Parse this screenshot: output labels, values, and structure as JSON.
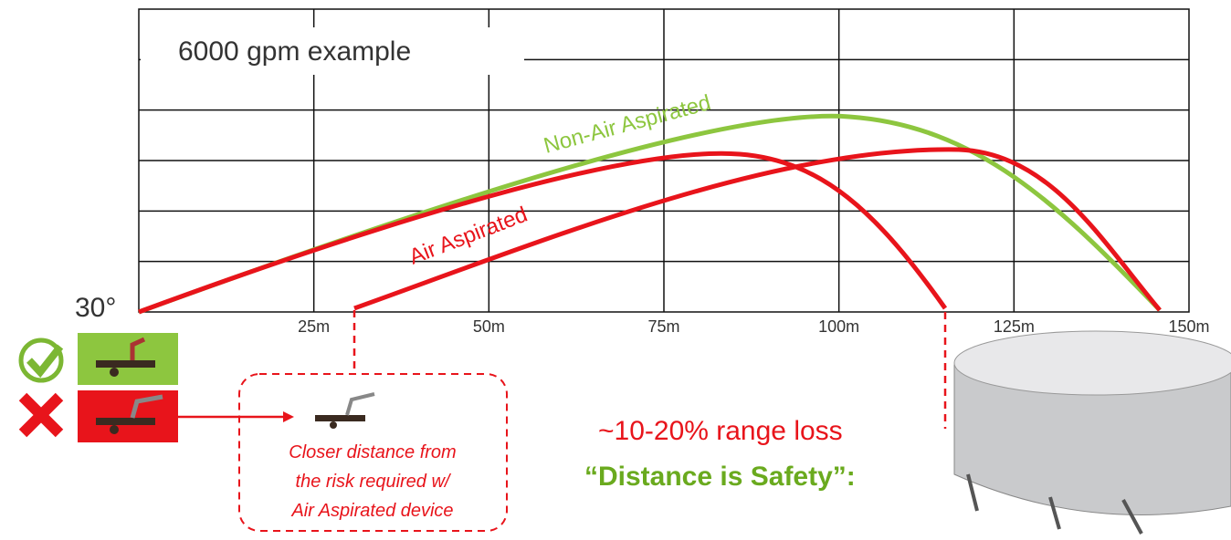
{
  "title": "6000 gpm example",
  "angle_label": "30°",
  "x_labels": [
    "25m",
    "50m",
    "75m",
    "100m",
    "125m",
    "150m"
  ],
  "curve_labels": {
    "non_air": "Non-Air Aspirated",
    "air": "Air Aspirated"
  },
  "note": [
    "Closer distance from",
    "the risk required w/",
    "Air Aspirated device"
  ],
  "range_loss": "~10-20% range loss",
  "slogan": "“Distance is Safety”:"
}
